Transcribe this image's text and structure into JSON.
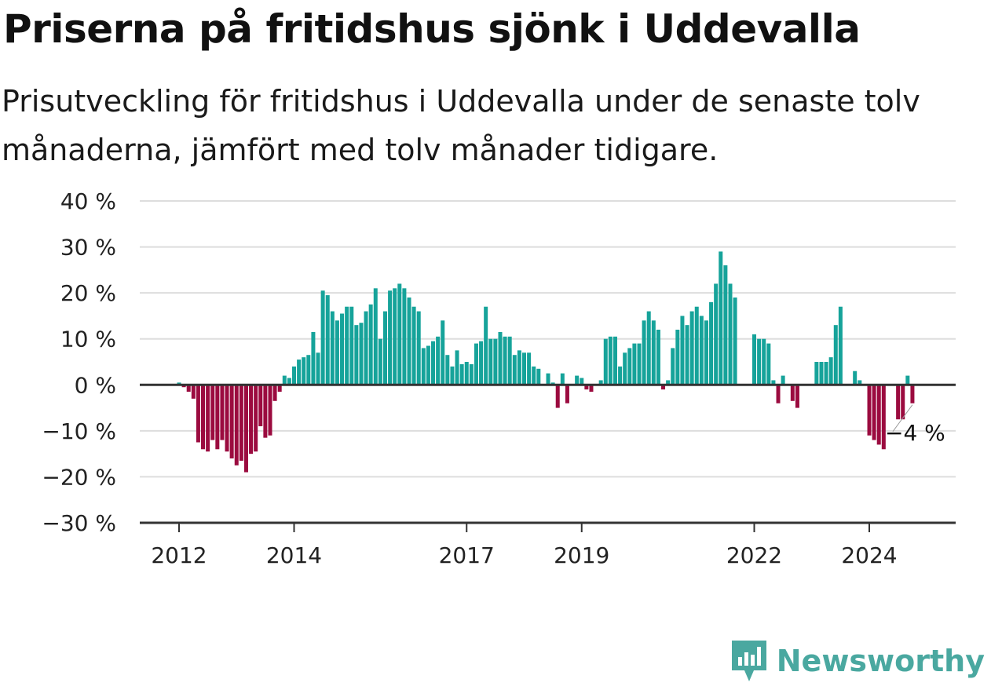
{
  "header": {
    "title": "Priserna på fritidshus sjönk i Uddevalla",
    "subtitle": "Prisutveckling för fritidshus i Uddevalla under de senaste tolv månaderna, jämfört med tolv månader tidigare."
  },
  "brand": {
    "name": "Newsworthy",
    "icon": "newsworthy-logo-icon",
    "color": "#4aa8a0"
  },
  "colors": {
    "positive": "#16a39a",
    "negative": "#9b0b3f",
    "grid": "#dddddd",
    "axis": "#333333"
  },
  "chart_data": {
    "type": "bar",
    "title": "Priserna på fritidshus sjönk i Uddevalla",
    "subtitle": "Prisutveckling för fritidshus i Uddevalla under de senaste tolv månaderna, jämfört med tolv månader tidigare.",
    "xlabel": "",
    "ylabel": "",
    "ylim": [
      -30,
      40
    ],
    "yticks": [
      -30,
      -20,
      -10,
      0,
      10,
      20,
      30,
      40
    ],
    "ytick_labels": [
      "−30 %",
      "−20 %",
      "−10 %",
      "0 %",
      "10 %",
      "20 %",
      "30 %",
      "40 %"
    ],
    "xtick_labels": [
      "2012",
      "2014",
      "2017",
      "2019",
      "2022",
      "2024"
    ],
    "xtick_dates": [
      "2012-01",
      "2014-01",
      "2017-01",
      "2019-01",
      "2022-01",
      "2024-01"
    ],
    "grid": true,
    "legend": "none",
    "annotation": {
      "text": "−4 %",
      "date": "2024-10"
    },
    "series": [
      {
        "values": [
          {
            "date": "2012-01",
            "value": 0.5
          },
          {
            "date": "2012-02",
            "value": -0.5
          },
          {
            "date": "2012-03",
            "value": -1.5
          },
          {
            "date": "2012-04",
            "value": -3
          },
          {
            "date": "2012-05",
            "value": -12.5
          },
          {
            "date": "2012-06",
            "value": -14
          },
          {
            "date": "2012-07",
            "value": -14.5
          },
          {
            "date": "2012-08",
            "value": -12
          },
          {
            "date": "2012-09",
            "value": -14
          },
          {
            "date": "2012-10",
            "value": -12
          },
          {
            "date": "2012-11",
            "value": -14.5
          },
          {
            "date": "2012-12",
            "value": -16
          },
          {
            "date": "2013-01",
            "value": -17.5
          },
          {
            "date": "2013-02",
            "value": -16.5
          },
          {
            "date": "2013-03",
            "value": -19
          },
          {
            "date": "2013-04",
            "value": -15
          },
          {
            "date": "2013-05",
            "value": -14.5
          },
          {
            "date": "2013-06",
            "value": -9
          },
          {
            "date": "2013-07",
            "value": -11.5
          },
          {
            "date": "2013-08",
            "value": -11
          },
          {
            "date": "2013-09",
            "value": -3.5
          },
          {
            "date": "2013-10",
            "value": -1.5
          },
          {
            "date": "2013-11",
            "value": 2
          },
          {
            "date": "2013-12",
            "value": 1.5
          },
          {
            "date": "2014-01",
            "value": 4
          },
          {
            "date": "2014-02",
            "value": 5.5
          },
          {
            "date": "2014-03",
            "value": 6
          },
          {
            "date": "2014-04",
            "value": 6.5
          },
          {
            "date": "2014-05",
            "value": 11.5
          },
          {
            "date": "2014-06",
            "value": 7
          },
          {
            "date": "2014-07",
            "value": 20.5
          },
          {
            "date": "2014-08",
            "value": 19.5
          },
          {
            "date": "2014-09",
            "value": 16
          },
          {
            "date": "2014-10",
            "value": 14
          },
          {
            "date": "2014-11",
            "value": 15.5
          },
          {
            "date": "2014-12",
            "value": 17
          },
          {
            "date": "2015-01",
            "value": 17
          },
          {
            "date": "2015-02",
            "value": 13
          },
          {
            "date": "2015-03",
            "value": 13.5
          },
          {
            "date": "2015-04",
            "value": 16
          },
          {
            "date": "2015-05",
            "value": 17.5
          },
          {
            "date": "2015-06",
            "value": 21
          },
          {
            "date": "2015-07",
            "value": 10
          },
          {
            "date": "2015-08",
            "value": 16
          },
          {
            "date": "2015-09",
            "value": 20.5
          },
          {
            "date": "2015-10",
            "value": 21
          },
          {
            "date": "2015-11",
            "value": 22
          },
          {
            "date": "2015-12",
            "value": 21
          },
          {
            "date": "2016-01",
            "value": 19
          },
          {
            "date": "2016-02",
            "value": 17
          },
          {
            "date": "2016-03",
            "value": 16
          },
          {
            "date": "2016-04",
            "value": 8
          },
          {
            "date": "2016-05",
            "value": 8.5
          },
          {
            "date": "2016-06",
            "value": 9.5
          },
          {
            "date": "2016-07",
            "value": 10.5
          },
          {
            "date": "2016-08",
            "value": 14
          },
          {
            "date": "2016-09",
            "value": 6.5
          },
          {
            "date": "2016-10",
            "value": 4
          },
          {
            "date": "2016-11",
            "value": 7.5
          },
          {
            "date": "2016-12",
            "value": 4.5
          },
          {
            "date": "2017-01",
            "value": 5
          },
          {
            "date": "2017-02",
            "value": 4.5
          },
          {
            "date": "2017-03",
            "value": 9
          },
          {
            "date": "2017-04",
            "value": 9.5
          },
          {
            "date": "2017-05",
            "value": 17
          },
          {
            "date": "2017-06",
            "value": 10
          },
          {
            "date": "2017-07",
            "value": 10
          },
          {
            "date": "2017-08",
            "value": 11.5
          },
          {
            "date": "2017-09",
            "value": 10.5
          },
          {
            "date": "2017-10",
            "value": 10.5
          },
          {
            "date": "2017-11",
            "value": 6.5
          },
          {
            "date": "2017-12",
            "value": 7.5
          },
          {
            "date": "2018-01",
            "value": 7
          },
          {
            "date": "2018-02",
            "value": 7
          },
          {
            "date": "2018-03",
            "value": 4
          },
          {
            "date": "2018-04",
            "value": 3.5
          },
          {
            "date": "2018-05",
            "value": 0
          },
          {
            "date": "2018-06",
            "value": 2.5
          },
          {
            "date": "2018-07",
            "value": 0.5
          },
          {
            "date": "2018-08",
            "value": -5
          },
          {
            "date": "2018-09",
            "value": 2.5
          },
          {
            "date": "2018-10",
            "value": -4
          },
          {
            "date": "2018-11",
            "value": 0
          },
          {
            "date": "2018-12",
            "value": 2
          },
          {
            "date": "2019-01",
            "value": 1.5
          },
          {
            "date": "2019-02",
            "value": -1
          },
          {
            "date": "2019-03",
            "value": -1.5
          },
          {
            "date": "2019-04",
            "value": 0
          },
          {
            "date": "2019-05",
            "value": 1
          },
          {
            "date": "2019-06",
            "value": 10
          },
          {
            "date": "2019-07",
            "value": 10.5
          },
          {
            "date": "2019-08",
            "value": 10.5
          },
          {
            "date": "2019-09",
            "value": 4
          },
          {
            "date": "2019-10",
            "value": 7
          },
          {
            "date": "2019-11",
            "value": 8
          },
          {
            "date": "2019-12",
            "value": 9
          },
          {
            "date": "2020-01",
            "value": 9
          },
          {
            "date": "2020-02",
            "value": 14
          },
          {
            "date": "2020-03",
            "value": 16
          },
          {
            "date": "2020-04",
            "value": 14
          },
          {
            "date": "2020-05",
            "value": 12
          },
          {
            "date": "2020-06",
            "value": -1
          },
          {
            "date": "2020-07",
            "value": 1
          },
          {
            "date": "2020-08",
            "value": 8
          },
          {
            "date": "2020-09",
            "value": 12
          },
          {
            "date": "2020-10",
            "value": 15
          },
          {
            "date": "2020-11",
            "value": 13
          },
          {
            "date": "2020-12",
            "value": 16
          },
          {
            "date": "2021-01",
            "value": 17
          },
          {
            "date": "2021-02",
            "value": 15
          },
          {
            "date": "2021-03",
            "value": 14
          },
          {
            "date": "2021-04",
            "value": 18
          },
          {
            "date": "2021-05",
            "value": 22
          },
          {
            "date": "2021-06",
            "value": 29
          },
          {
            "date": "2021-07",
            "value": 26
          },
          {
            "date": "2021-08",
            "value": 22
          },
          {
            "date": "2021-09",
            "value": 19
          },
          {
            "date": "2021-10",
            "value": 0
          },
          {
            "date": "2021-11",
            "value": 0
          },
          {
            "date": "2021-12",
            "value": 0
          },
          {
            "date": "2022-01",
            "value": 11
          },
          {
            "date": "2022-02",
            "value": 10
          },
          {
            "date": "2022-03",
            "value": 10
          },
          {
            "date": "2022-04",
            "value": 9
          },
          {
            "date": "2022-05",
            "value": 1
          },
          {
            "date": "2022-06",
            "value": -4
          },
          {
            "date": "2022-07",
            "value": 2
          },
          {
            "date": "2022-08",
            "value": 0
          },
          {
            "date": "2022-09",
            "value": -3.5
          },
          {
            "date": "2022-10",
            "value": -5
          },
          {
            "date": "2022-11",
            "value": 0
          },
          {
            "date": "2022-12",
            "value": 0
          },
          {
            "date": "2023-01",
            "value": 0
          },
          {
            "date": "2023-02",
            "value": 5
          },
          {
            "date": "2023-03",
            "value": 5
          },
          {
            "date": "2023-04",
            "value": 5
          },
          {
            "date": "2023-05",
            "value": 6
          },
          {
            "date": "2023-06",
            "value": 13
          },
          {
            "date": "2023-07",
            "value": 17
          },
          {
            "date": "2023-08",
            "value": 0
          },
          {
            "date": "2023-09",
            "value": 0
          },
          {
            "date": "2023-10",
            "value": 3
          },
          {
            "date": "2023-11",
            "value": 1
          },
          {
            "date": "2023-12",
            "value": 0
          },
          {
            "date": "2024-01",
            "value": -11
          },
          {
            "date": "2024-02",
            "value": -12
          },
          {
            "date": "2024-03",
            "value": -13
          },
          {
            "date": "2024-04",
            "value": -14
          },
          {
            "date": "2024-05",
            "value": 0
          },
          {
            "date": "2024-06",
            "value": 0
          },
          {
            "date": "2024-07",
            "value": -7.5
          },
          {
            "date": "2024-08",
            "value": -7.5
          },
          {
            "date": "2024-09",
            "value": 2
          },
          {
            "date": "2024-10",
            "value": -4
          }
        ]
      }
    ]
  }
}
